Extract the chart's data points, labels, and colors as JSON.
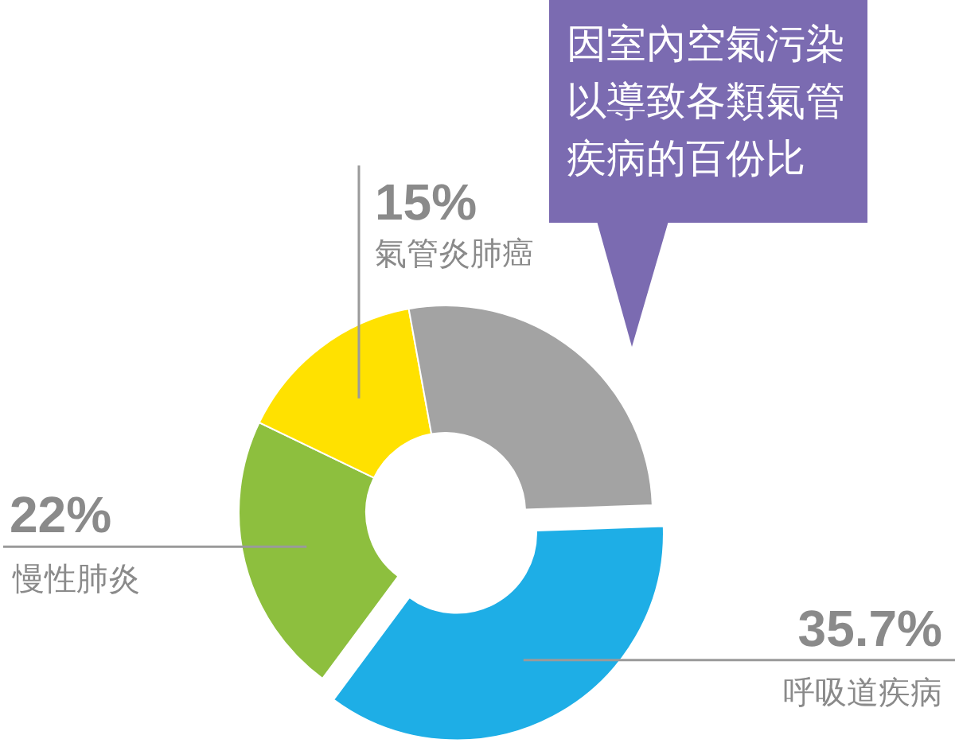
{
  "chart_data": {
    "type": "donut",
    "title": "因室內空氣污染以導致各類氣管疾病的百份比",
    "categories": [
      "呼吸道疾病",
      "慢性肺炎",
      "氣管炎肺癌",
      null
    ],
    "values": [
      35.7,
      22,
      15,
      27.3
    ],
    "colors": [
      "#1eaee6",
      "#8dbf3e",
      "#ffe100",
      "#a3a3a3"
    ],
    "value_labels": [
      "35.7%",
      "22%",
      "15%",
      null
    ]
  }
}
